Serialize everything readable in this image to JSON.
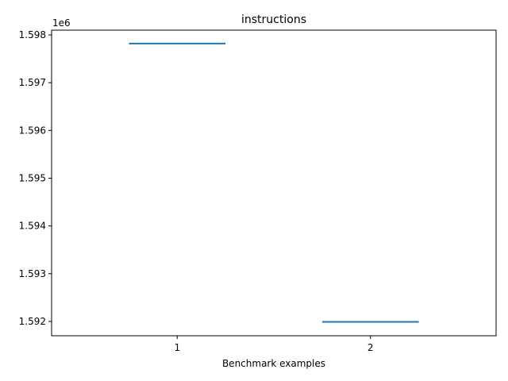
{
  "chart_data": {
    "type": "line",
    "title": "instructions",
    "xlabel": "Benchmark examples",
    "ylabel": "",
    "offset_label": "1e6",
    "categories": [
      "1",
      "2"
    ],
    "x": [
      1,
      2
    ],
    "series": [
      {
        "values": [
          1597820,
          1591990
        ],
        "color": "#1f77b4"
      }
    ],
    "xlim": [
      0.35,
      2.65
    ],
    "ylim": [
      1591700,
      1598100
    ],
    "yticks": [
      1592000,
      1593000,
      1594000,
      1595000,
      1596000,
      1597000,
      1598000
    ],
    "ytick_labels": [
      "1.592",
      "1.593",
      "1.594",
      "1.595",
      "1.596",
      "1.597",
      "1.598"
    ],
    "grid": false,
    "legend": "none"
  }
}
